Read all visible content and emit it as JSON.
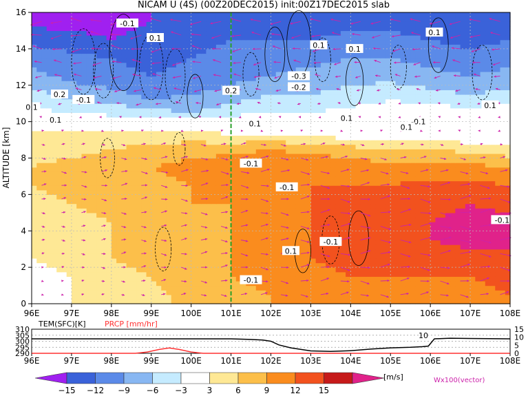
{
  "title": "NICAM U (4S) (00Z20DEC2015) init:00Z17DEC2015 slab",
  "chart_data": [
    {
      "type": "heatmap",
      "title": "NICAM U (4S) (00Z20DEC2015) init:00Z17DEC2015 slab",
      "ylabel": "ALTITUDE [km]",
      "xlabel": "",
      "x_ticks": [
        "96E",
        "97E",
        "98E",
        "99E",
        "100E",
        "101E",
        "102E",
        "103E",
        "104E",
        "105E",
        "106E",
        "107E",
        "108E"
      ],
      "x_range": [
        96,
        108
      ],
      "y_ticks": [
        "0",
        "2",
        "4",
        "6",
        "8",
        "10",
        "12",
        "14",
        "16"
      ],
      "y_range": [
        0,
        16
      ],
      "grid": true,
      "reference_line_lon": 101,
      "field_units": "m/s",
      "field_rows_lon": [
        96,
        97,
        98,
        99,
        100,
        101,
        102,
        103,
        104,
        105,
        106,
        107,
        108
      ],
      "field_rows_alt": [
        0.5,
        1.5,
        2.5,
        3.5,
        4.5,
        5.5,
        6.5,
        7.5,
        8.5,
        9.5,
        10.5,
        11.5,
        12.5,
        13.5,
        14.5,
        15.5
      ],
      "field_values": [
        [
          1,
          3,
          4,
          5,
          7,
          8,
          9,
          10,
          11,
          11,
          11,
          11,
          12
        ],
        [
          2,
          3,
          5,
          6,
          8,
          9,
          10,
          11,
          12,
          12,
          12,
          12,
          13
        ],
        [
          3,
          4,
          6,
          7,
          8,
          9,
          10,
          12,
          13,
          13,
          13,
          14,
          14
        ],
        [
          4,
          5,
          6,
          7,
          8,
          9,
          10,
          12,
          13,
          14,
          15,
          16,
          16
        ],
        [
          4,
          5,
          6,
          7,
          8,
          9,
          10,
          12,
          13,
          14,
          15,
          16,
          16
        ],
        [
          5,
          6,
          7,
          8,
          9,
          9,
          10,
          12,
          13,
          13,
          14,
          15,
          14
        ],
        [
          6,
          7,
          8,
          8,
          9,
          10,
          11,
          12,
          12,
          12,
          13,
          13,
          12
        ],
        [
          6,
          7,
          8,
          9,
          10,
          11,
          12,
          12,
          11,
          10,
          10,
          10,
          9
        ],
        [
          5,
          5,
          6,
          7,
          8,
          8,
          9,
          8,
          7,
          6,
          6,
          5,
          4
        ],
        [
          3,
          3,
          3,
          3,
          3,
          2,
          2,
          1,
          0,
          0,
          0,
          -1,
          0
        ],
        [
          -2,
          -3,
          -4,
          -5,
          -6,
          -4,
          -3,
          -3,
          -2,
          -1,
          -1,
          -2,
          -1
        ],
        [
          -5,
          -7,
          -8,
          -10,
          -9,
          -8,
          -6,
          -6,
          -5,
          -4,
          -5,
          -6,
          -5
        ],
        [
          -8,
          -10,
          -11,
          -12,
          -11,
          -10,
          -9,
          -8,
          -7,
          -7,
          -8,
          -9,
          -8
        ],
        [
          -10,
          -11,
          -12,
          -13,
          -12,
          -11,
          -10,
          -10,
          -9,
          -9,
          -10,
          -11,
          -10
        ],
        [
          -13,
          -14,
          -15,
          -14,
          -13,
          -12,
          -12,
          -12,
          -11,
          -11,
          -12,
          -13,
          -12
        ],
        [
          -16,
          -16,
          -16,
          -15,
          -15,
          -14,
          -14,
          -14,
          -13,
          -13,
          -14,
          -15,
          -15
        ]
      ],
      "annotations": [
        {
          "text": "-0.1",
          "lon": 98.4,
          "alt": 15.4
        },
        {
          "text": "0.1",
          "lon": 99.1,
          "alt": 14.6
        },
        {
          "text": "0.1",
          "lon": 104.1,
          "alt": 14.0
        },
        {
          "text": "0.1",
          "lon": 103.2,
          "alt": 14.2
        },
        {
          "text": "0.1",
          "lon": 106.1,
          "alt": 14.9
        },
        {
          "text": "-0.3",
          "lon": 102.7,
          "alt": 12.5
        },
        {
          "text": "-0.2",
          "lon": 102.7,
          "alt": 11.9
        },
        {
          "text": "0.2",
          "lon": 96.7,
          "alt": 11.5
        },
        {
          "text": "-0.1",
          "lon": 97.3,
          "alt": 11.2
        },
        {
          "text": "0.2",
          "lon": 101.0,
          "alt": 11.7
        },
        {
          "text": "0.1",
          "lon": 96.0,
          "alt": 10.8
        },
        {
          "text": "0.1",
          "lon": 96.6,
          "alt": 10.1
        },
        {
          "text": "0.1",
          "lon": 101.6,
          "alt": 9.9
        },
        {
          "text": "0.1",
          "lon": 103.9,
          "alt": 10.2
        },
        {
          "text": "-0.1",
          "lon": 105.7,
          "alt": 10.0
        },
        {
          "text": "0.1",
          "lon": 105.4,
          "alt": 9.7
        },
        {
          "text": "0.1",
          "lon": 107.5,
          "alt": 10.9
        },
        {
          "text": "-0.1",
          "lon": 101.5,
          "alt": 7.7
        },
        {
          "text": "-0.1",
          "lon": 102.4,
          "alt": 6.4
        },
        {
          "text": "-0.1",
          "lon": 107.8,
          "alt": 4.6
        },
        {
          "text": "-0.1",
          "lon": 103.5,
          "alt": 3.4
        },
        {
          "text": "0.1",
          "lon": 102.5,
          "alt": 2.9
        },
        {
          "text": "-0.1",
          "lon": 101.5,
          "alt": 1.3
        }
      ]
    },
    {
      "type": "line",
      "left_ylabel": "TEM(SFC)[K]",
      "right_ylabel": "PRCP [mm/hr]",
      "left_y_ticks": [
        "290",
        "295",
        "300",
        "305",
        "310"
      ],
      "left_range": [
        290,
        310
      ],
      "right_y_ticks": [
        "0",
        "5",
        "10",
        "15"
      ],
      "right_range": [
        0,
        15
      ],
      "x_ticks": [
        "96E",
        "97E",
        "98E",
        "99E",
        "100E",
        "101E",
        "102E",
        "103E",
        "104E",
        "105E",
        "106E",
        "107E",
        "108E"
      ],
      "annotation": "10",
      "series": [
        {
          "name": "TEM(SFC)[K]",
          "color": "#000000",
          "axis": "left",
          "x": [
            96,
            97,
            98,
            99,
            100,
            101,
            101.5,
            101.8,
            102,
            102.2,
            102.5,
            103,
            103.5,
            104,
            104.5,
            105,
            105.5,
            105.8,
            105.95,
            106.1,
            106.5,
            107,
            107.5,
            108
          ],
          "y": [
            302,
            302,
            302,
            302,
            302,
            302,
            301.5,
            301,
            300,
            297,
            294.5,
            292,
            291.6,
            292.2,
            293.5,
            294.5,
            295,
            295.5,
            296,
            302,
            302.5,
            302.3,
            302.1,
            302
          ]
        },
        {
          "name": "PRCP [mm/hr]",
          "color": "#ff3030",
          "axis": "right",
          "x": [
            96,
            98.6,
            98.9,
            99.2,
            99.45,
            99.7,
            100.0,
            100.3,
            108
          ],
          "y": [
            0,
            0,
            0.8,
            2.4,
            3.3,
            2.4,
            0.8,
            0,
            0
          ]
        }
      ]
    },
    {
      "type": "colorbar",
      "ticks": [
        "−15",
        "−12",
        "−9",
        "−6",
        "−3",
        "3",
        "6",
        "9",
        "12",
        "15"
      ],
      "bounds": [
        -15,
        -12,
        -9,
        -6,
        -3,
        3,
        6,
        9,
        12,
        15
      ],
      "colors": [
        "#a020f0",
        "#3a62d9",
        "#5b8ae8",
        "#88b7f2",
        "#c5ebff",
        "#ffffff",
        "#fee895",
        "#fcbf4a",
        "#fa8c1e",
        "#f2521e",
        "#c61a1a",
        "#e0228a"
      ],
      "units": "[m/s]",
      "vector_label": "Wx100(vector)",
      "vector_color": "#cc22aa"
    }
  ]
}
